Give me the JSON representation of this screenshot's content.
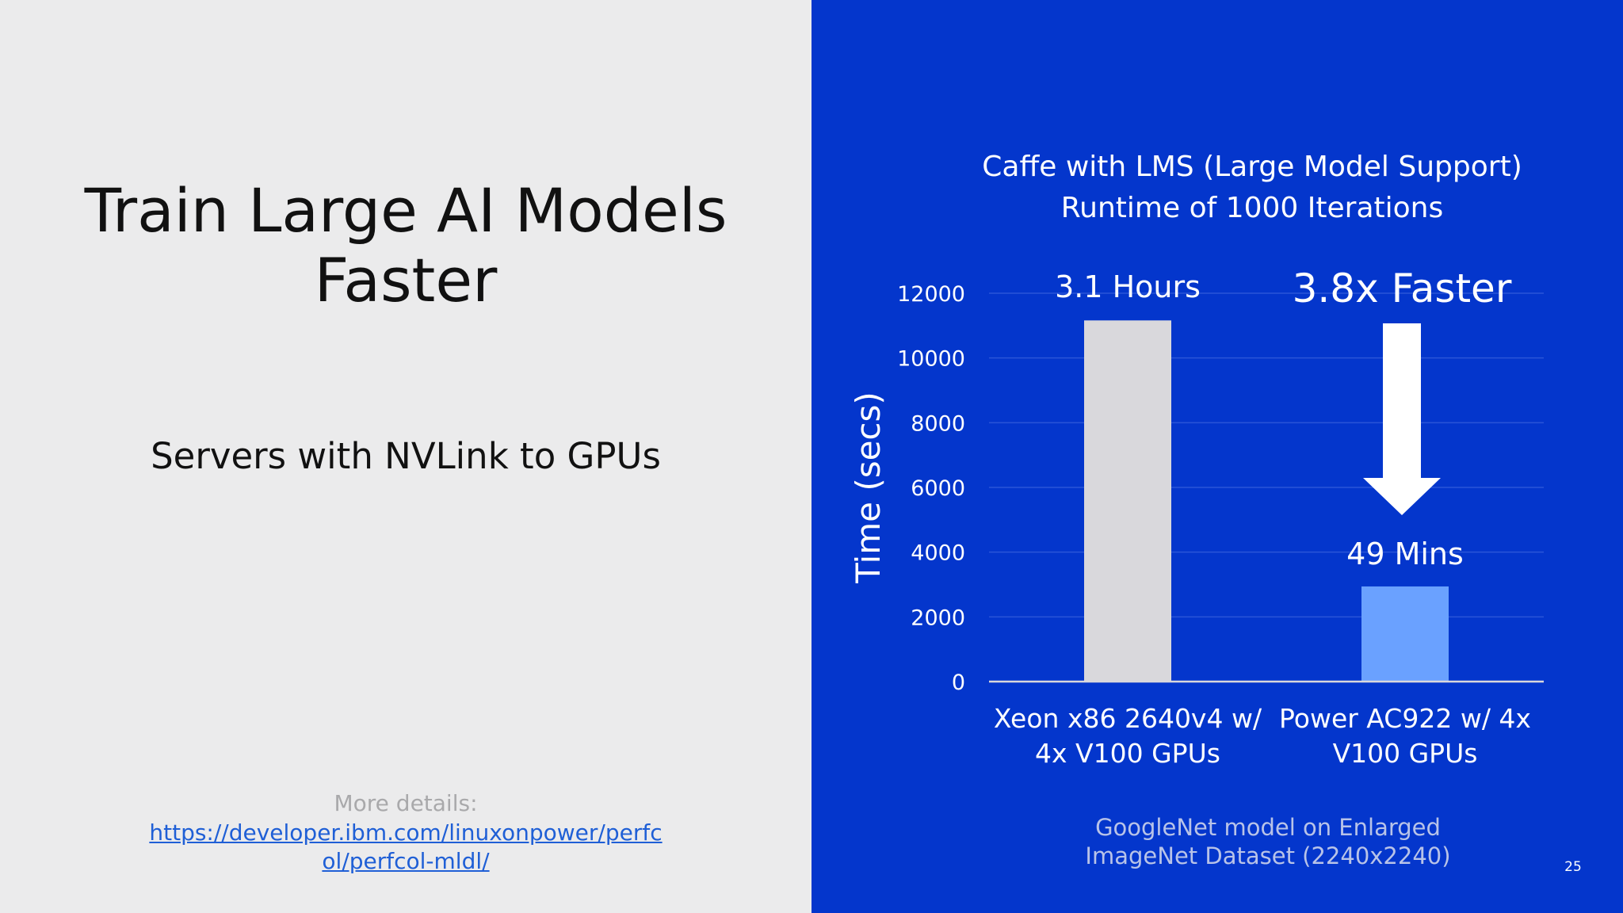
{
  "slide": {
    "title_line1": "Train Large AI Models",
    "title_line2": "Faster",
    "subtitle": "Servers with NVLink to GPUs",
    "more_details_label": "More details:",
    "details_link": "https://developer.ibm.com/linuxonpower/perfcol/perfcol-mldl/",
    "page_number": "25"
  },
  "colors": {
    "left_background": "#ebebec",
    "right_background": "#0436cc",
    "xeon_bar": "#d9d8dc",
    "power_bar": "#6aa1ff",
    "link": "#1f5fd6"
  },
  "chart_data": {
    "type": "bar",
    "title_line1": "Caffe with LMS (Large Model Support)",
    "title_line2": "Runtime of 1000 Iterations",
    "ylabel": "Time (secs)",
    "ylim": [
      0,
      12000
    ],
    "yticks": [
      "0",
      "2000",
      "4000",
      "6000",
      "8000",
      "10000",
      "12000"
    ],
    "grid": true,
    "categories": [
      {
        "line1": "Xeon x86 2640v4 w/",
        "line2": "4x V100 GPUs"
      },
      {
        "line1": "Power AC922 w/ 4x",
        "line2": "V100 GPUs"
      }
    ],
    "values": [
      11160,
      2940
    ],
    "data_labels": [
      "3.1 Hours",
      "49 Mins"
    ],
    "annotation": "3.8x Faster",
    "footnote_line1": "GoogleNet model  on Enlarged",
    "footnote_line2": "ImageNet Dataset (2240x2240)"
  }
}
